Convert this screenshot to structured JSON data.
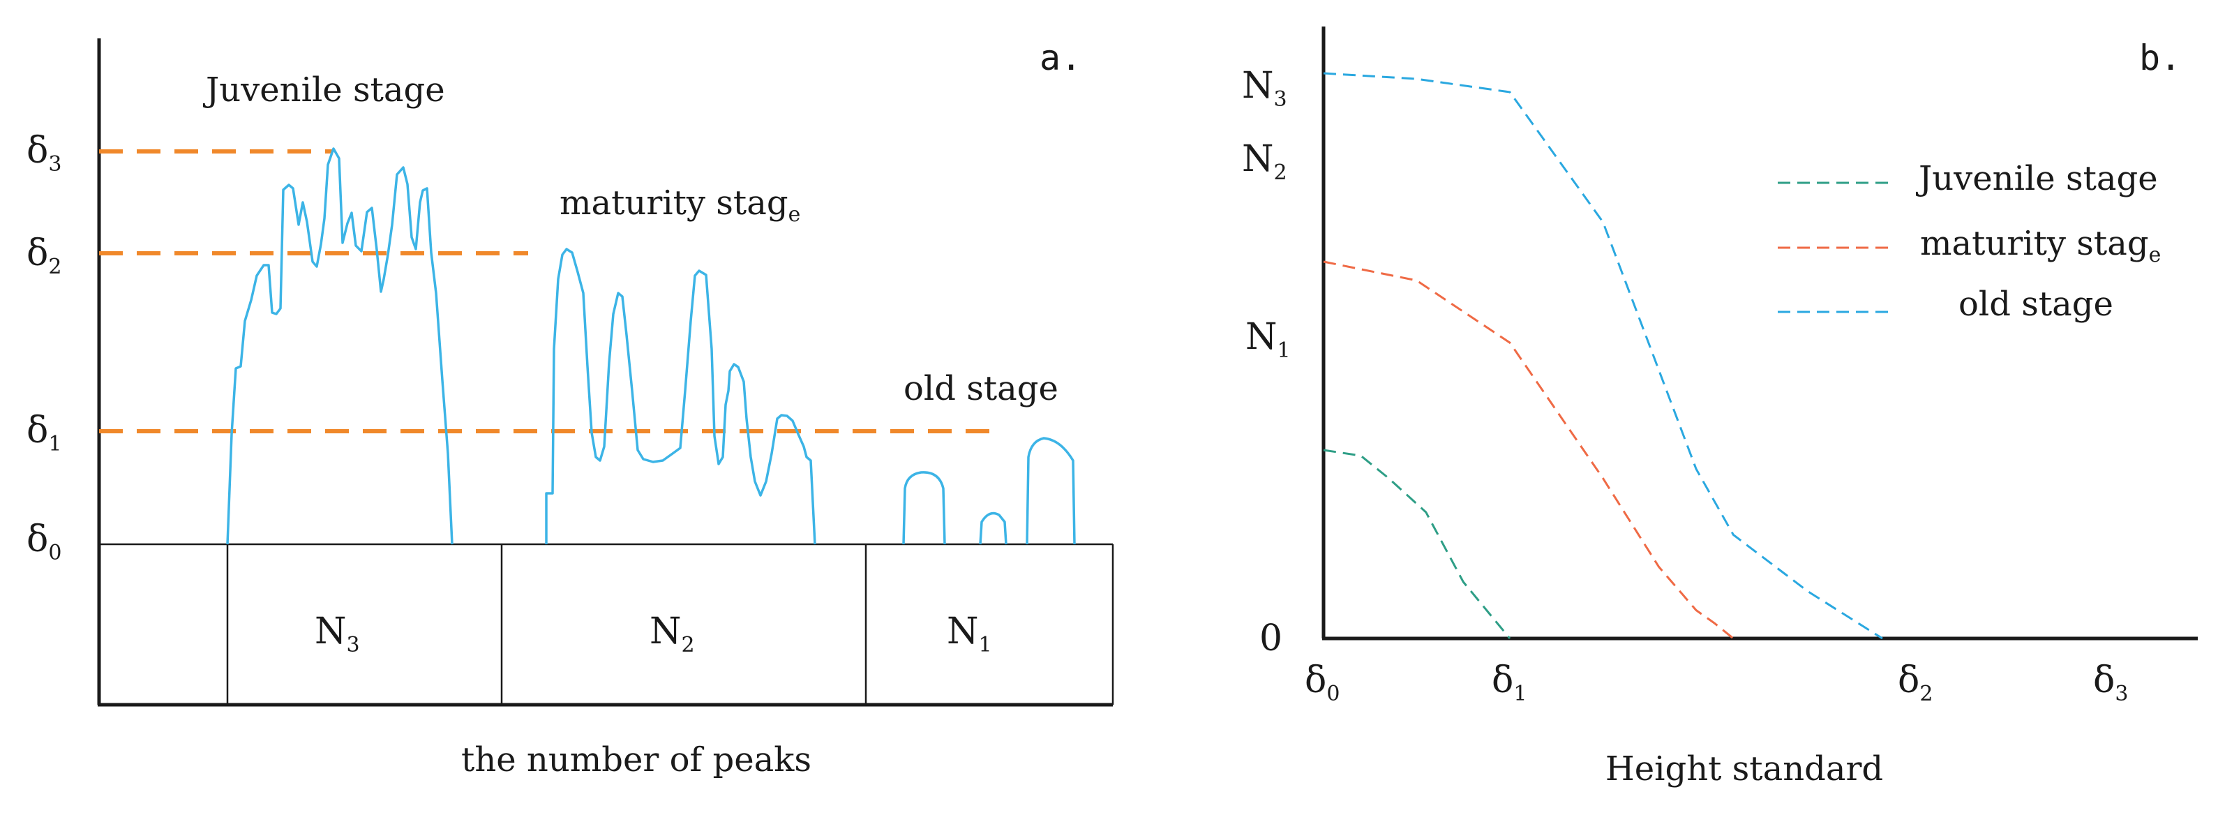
{
  "colors": {
    "axis": "#1a1a1a",
    "threshold_line": "#f0882a",
    "profile_line": "#3cb4e6",
    "juvenile": "#2e9e86",
    "maturity": "#ef6a45",
    "old": "#2aa8e0"
  },
  "panel_a": {
    "tag": "a.",
    "xlabel": "the number of peaks",
    "stage_labels": {
      "juvenile": "Juvenile stage",
      "maturity": {
        "main": "maturity stag",
        "tail": "e"
      },
      "old": "old stage"
    },
    "levels": [
      {
        "base": "δ",
        "sub": "3"
      },
      {
        "base": "δ",
        "sub": "2"
      },
      {
        "base": "δ",
        "sub": "1"
      },
      {
        "base": "δ",
        "sub": "0"
      }
    ],
    "boxes": [
      {
        "base": "N",
        "sub": "3"
      },
      {
        "base": "N",
        "sub": "2"
      },
      {
        "base": "N",
        "sub": "1"
      }
    ]
  },
  "panel_b": {
    "tag": "b.",
    "xlabel": "Height standard",
    "origin_label": "0",
    "y_ticks": [
      {
        "base": "N",
        "sub": "3"
      },
      {
        "base": "N",
        "sub": "2"
      },
      {
        "base": "N",
        "sub": "1"
      }
    ],
    "x_ticks": [
      {
        "base": "δ",
        "sub": "0"
      },
      {
        "base": "δ",
        "sub": "1"
      },
      {
        "base": "δ",
        "sub": "2"
      },
      {
        "base": "δ",
        "sub": "3"
      }
    ],
    "legend": {
      "juvenile": "Juvenile stage",
      "maturity": {
        "main": "maturity stag",
        "tail": "e"
      },
      "old": "old stage"
    }
  },
  "chart_data": {
    "type": "line",
    "title": "",
    "xlabel": "Height standard",
    "ylabel": "",
    "x_ticks": [
      "δ0",
      "δ1",
      "δ2",
      "δ3"
    ],
    "y_ticks": [
      "0",
      "N1",
      "N2",
      "N3"
    ],
    "legend_position": "top-right",
    "series": [
      {
        "name": "Juvenile stage",
        "style": "dashed",
        "color": "#2e9e86",
        "x": [
          0.0,
          0.2,
          0.35,
          0.55,
          0.75,
          1.0
        ],
        "y": [
          1.0,
          0.97,
          0.85,
          0.67,
          0.3,
          0.0
        ]
      },
      {
        "name": "maturity stage",
        "style": "dashed",
        "color": "#ef6a45",
        "x": [
          0.0,
          0.5,
          1.0,
          1.5,
          1.8,
          2.0,
          2.1,
          2.2
        ],
        "y": [
          2.0,
          1.9,
          1.57,
          0.85,
          0.38,
          0.15,
          0.08,
          0.0
        ]
      },
      {
        "name": "old stage",
        "style": "dashed",
        "color": "#2aa8e0",
        "x": [
          0.0,
          0.5,
          1.0,
          1.5,
          2.0,
          2.2,
          2.6,
          3.0
        ],
        "y": [
          3.0,
          2.97,
          2.9,
          2.21,
          0.9,
          0.55,
          0.25,
          0.0
        ]
      }
    ]
  }
}
